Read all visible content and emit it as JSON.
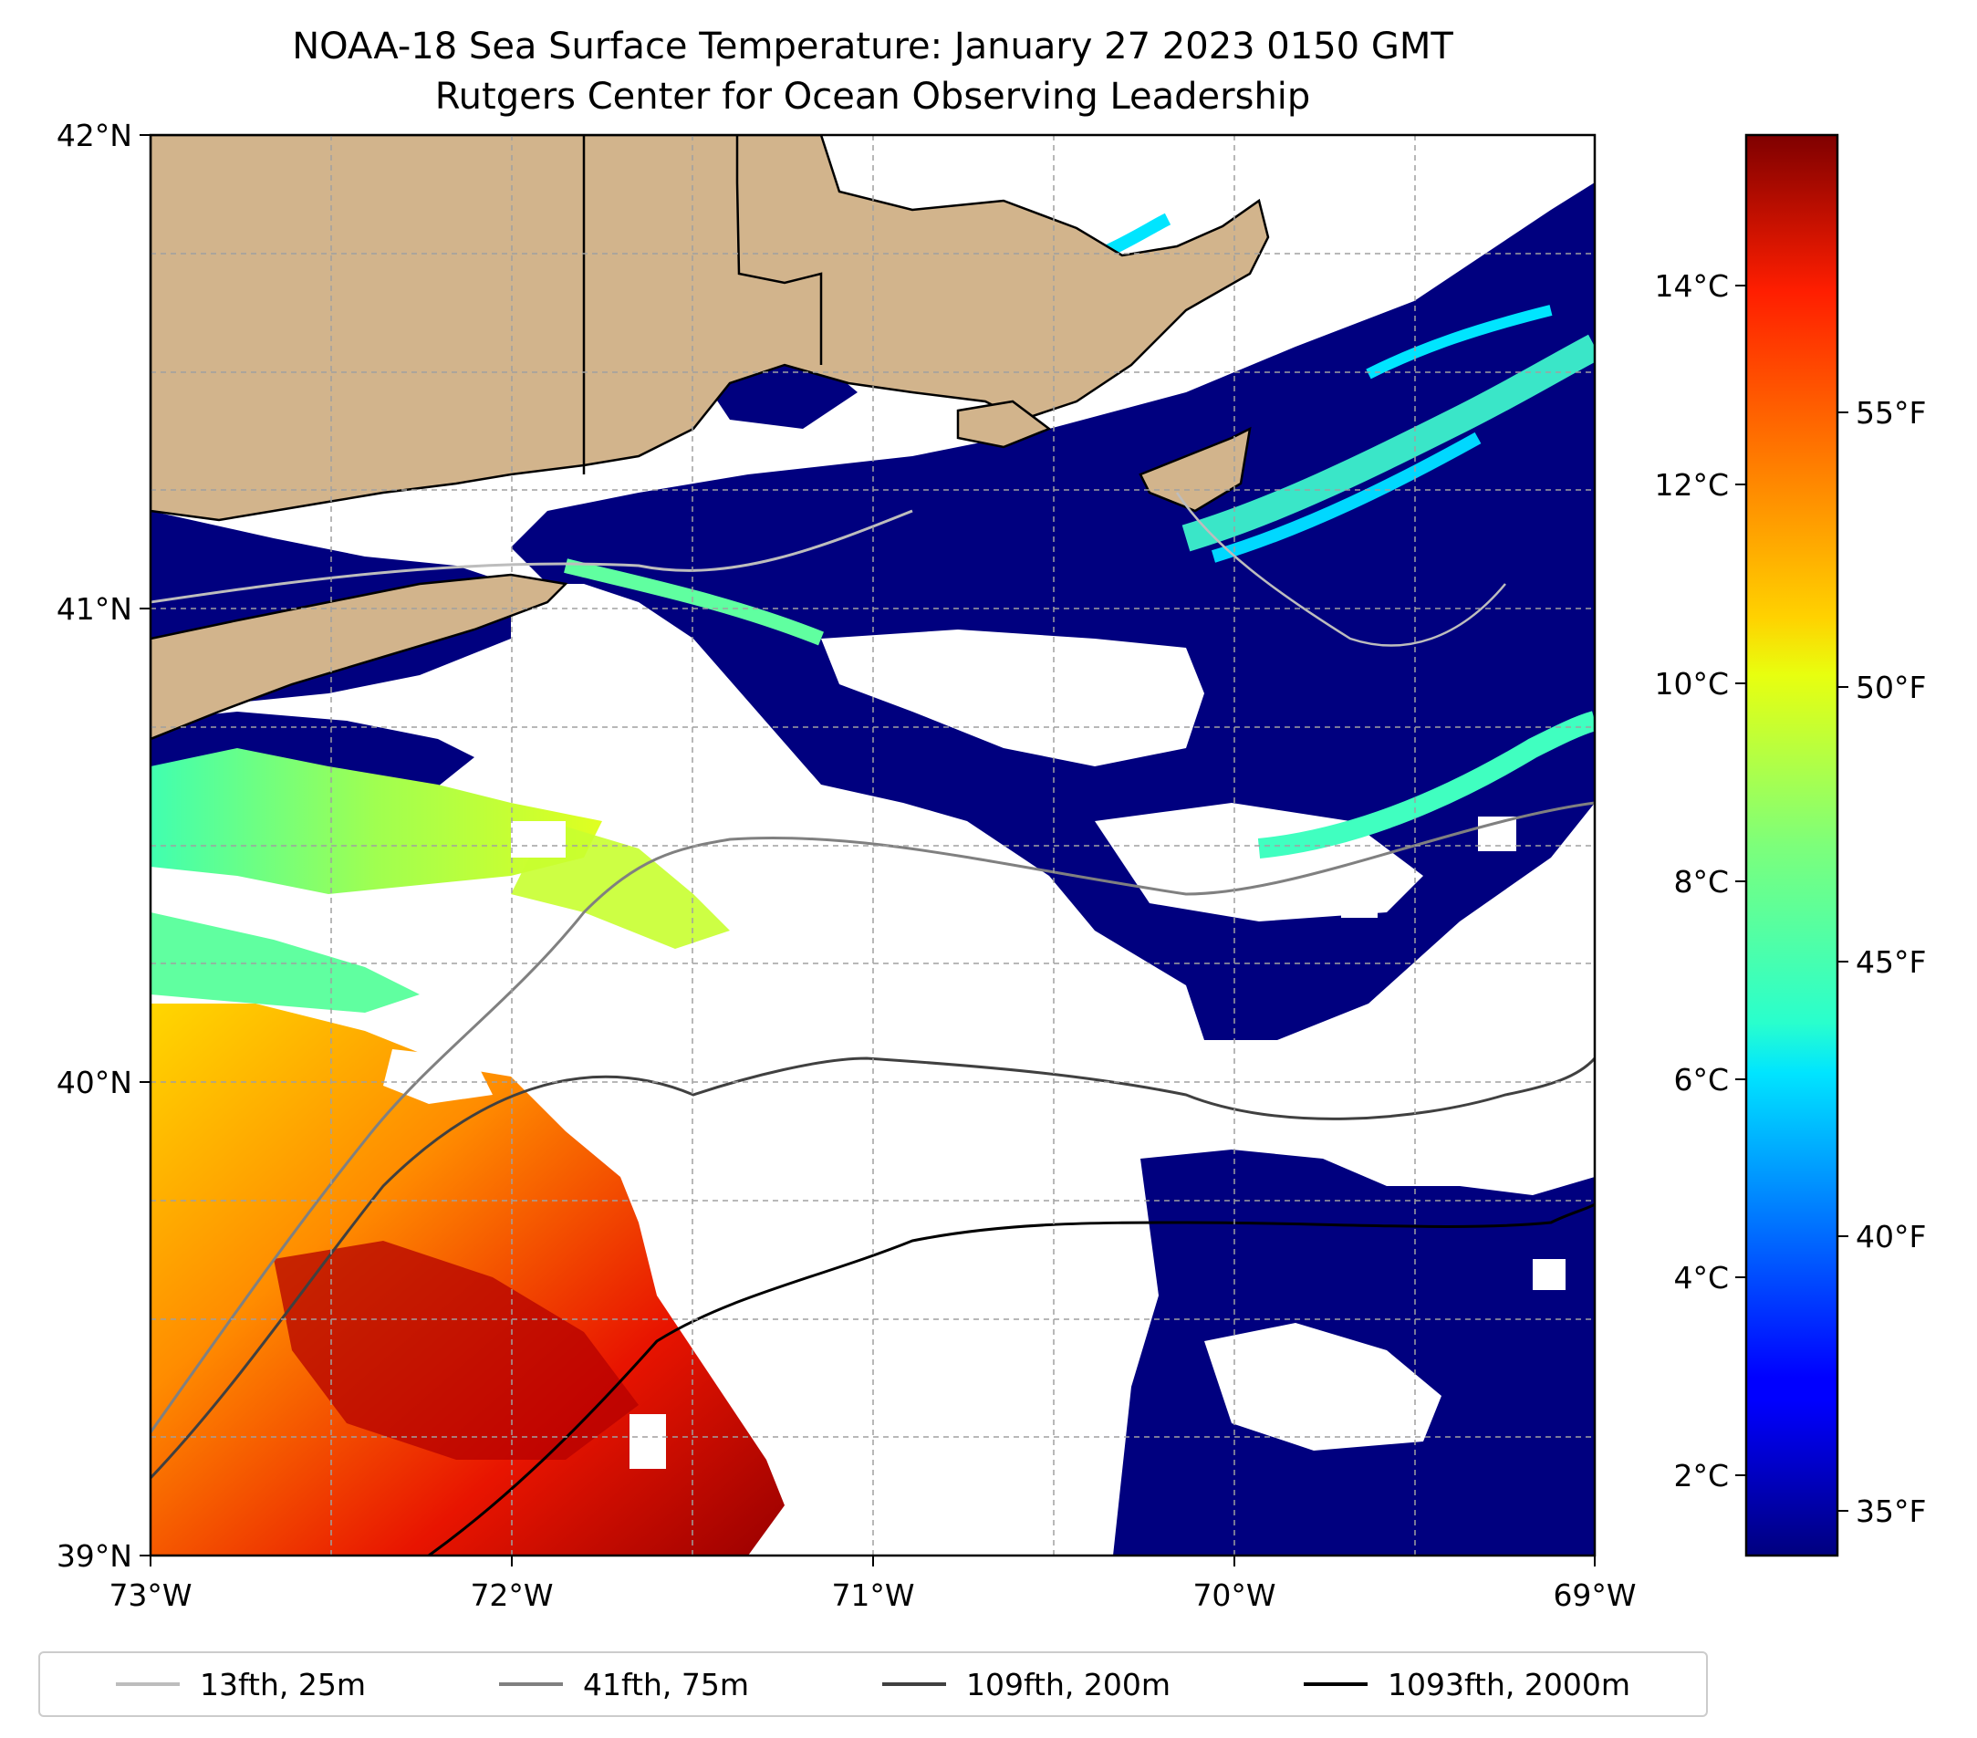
{
  "title": "NOAA-18 Sea Surface Temperature: January 27 2023 0150 GMT",
  "subtitle": "Rutgers Center for Ocean Observing Leadership",
  "map": {
    "lon_range": [
      -73,
      -69
    ],
    "lat_range": [
      39,
      42
    ],
    "lon_ticks": [
      "73°W",
      "72°W",
      "71°W",
      "70°W",
      "69°W"
    ],
    "lat_ticks": [
      "42°N",
      "41°N",
      "40°N",
      "39°N"
    ],
    "grid": true,
    "land_color": "#d2b48c",
    "no_data_color": "#ffffff"
  },
  "colorbar": {
    "colormap": "jet",
    "celsius_range": [
      1.3,
      15.6
    ],
    "celsius_ticks": [
      "14°C",
      "12°C",
      "10°C",
      "8°C",
      "6°C",
      "4°C",
      "2°C"
    ],
    "fahrenheit_ticks": [
      "55°F",
      "50°F",
      "45°F",
      "40°F",
      "35°F"
    ]
  },
  "legend": {
    "placement": "bottom",
    "items": [
      {
        "label": "13fth, 25m",
        "color": "#bdbdbd"
      },
      {
        "label": "41fth, 75m",
        "color": "#808080"
      },
      {
        "label": "109fth, 200m",
        "color": "#404040"
      },
      {
        "label": "1093fth, 2000m",
        "color": "#000000"
      }
    ]
  }
}
